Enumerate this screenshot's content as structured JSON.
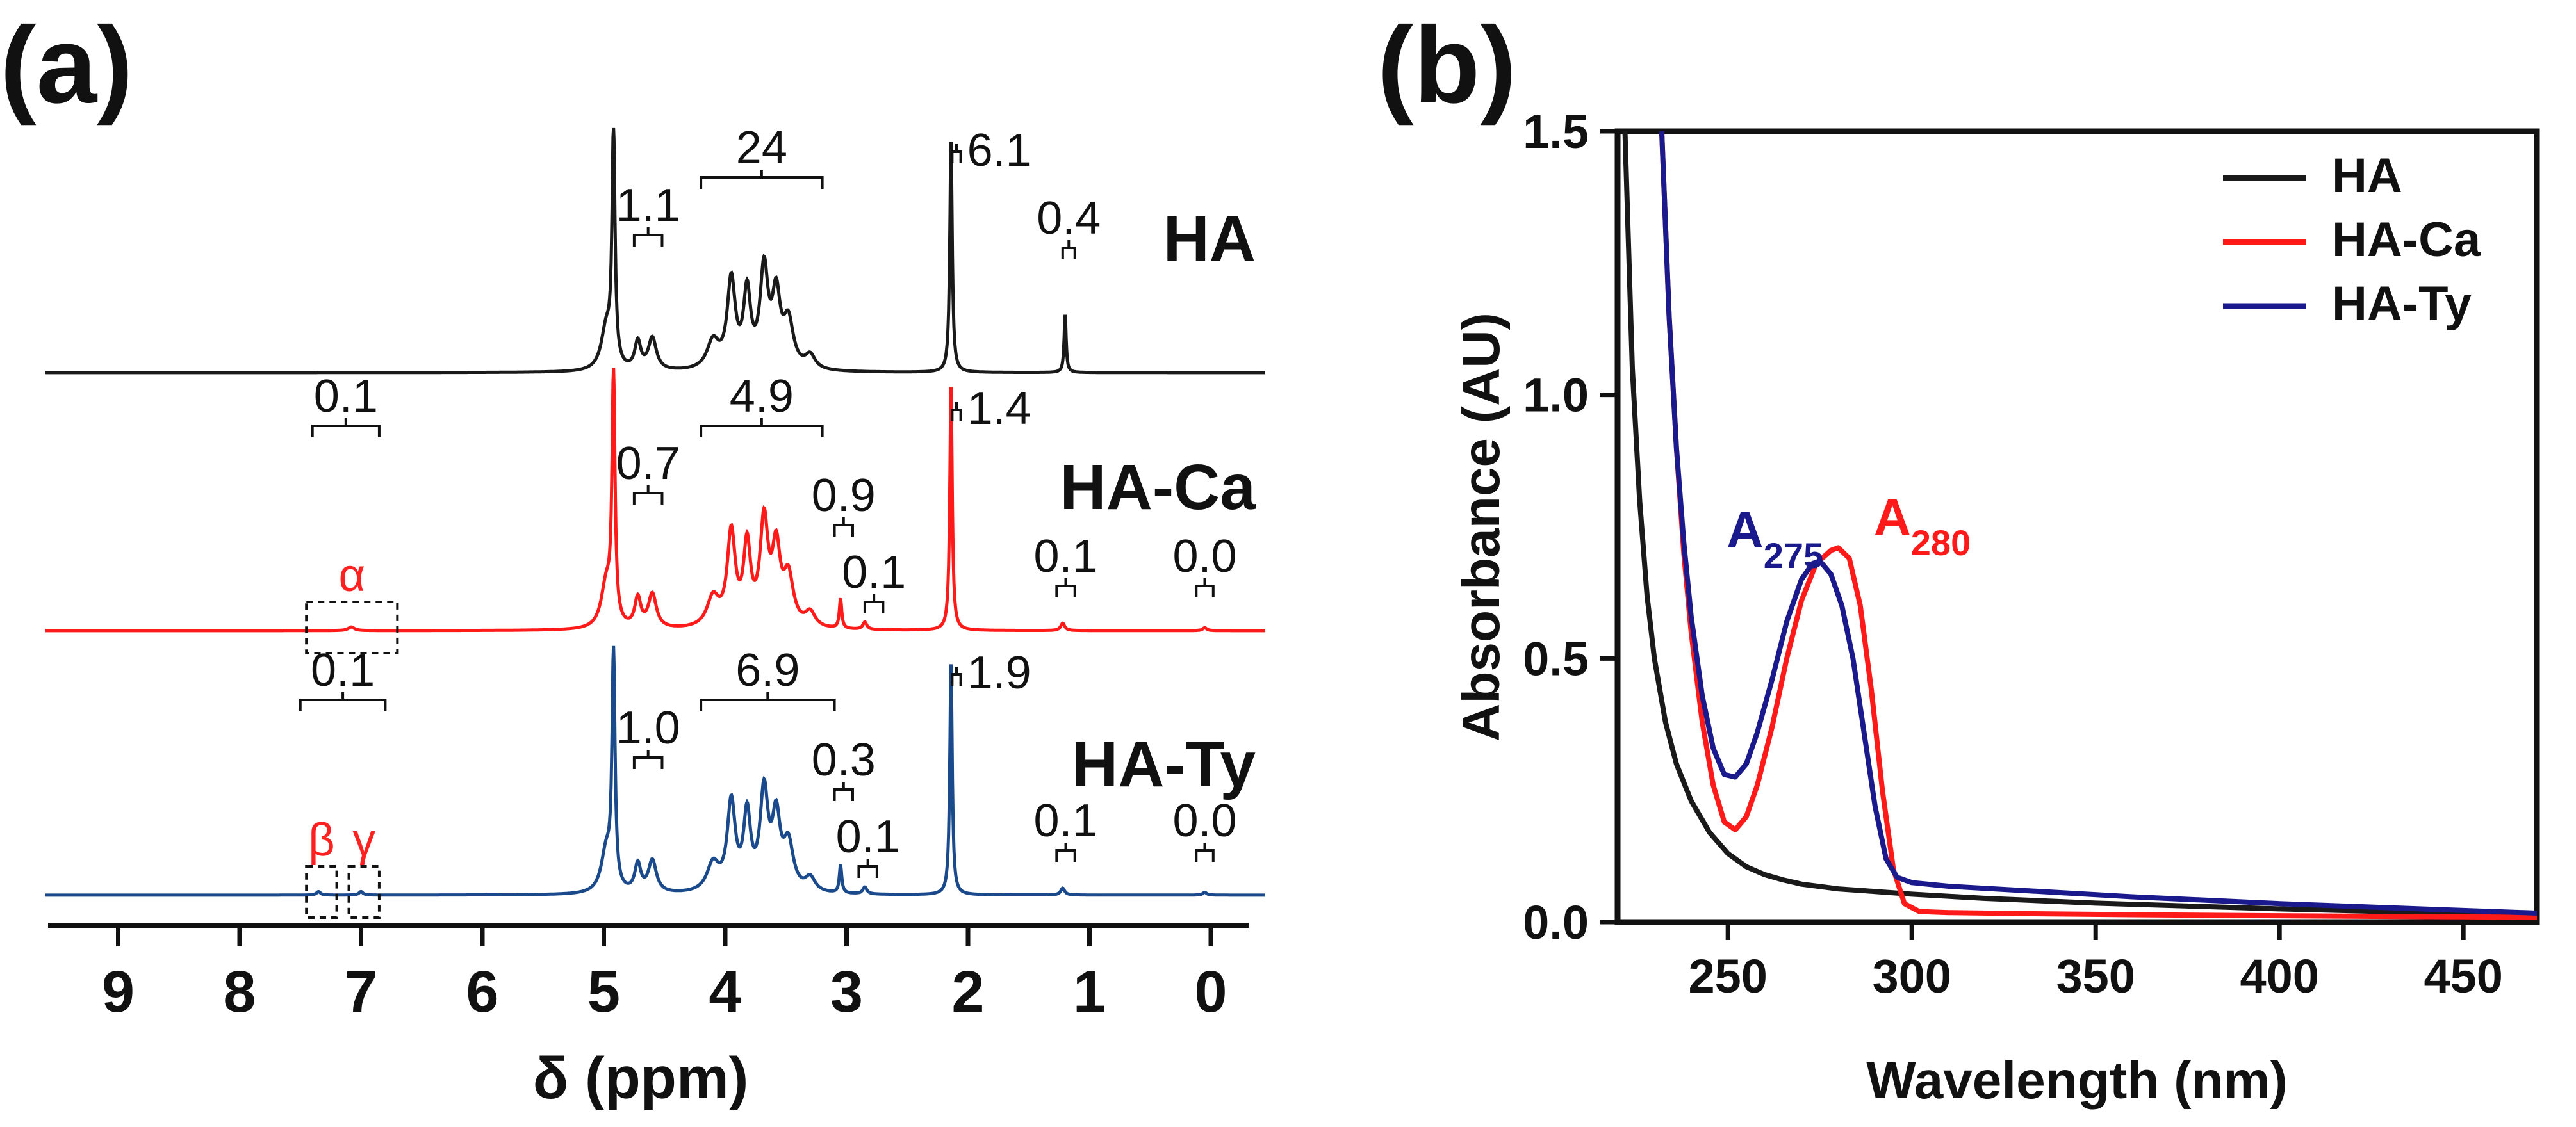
{
  "panel_labels": {
    "a": "(a)",
    "b": "(b)"
  },
  "chart_data": [
    {
      "type": "line",
      "title": "",
      "xlabel": "δ (ppm)",
      "ylabel": "",
      "xlim": [
        9.5,
        -0.5
      ],
      "x_ticks": [
        "9",
        "8",
        "7",
        "6",
        "5",
        "4",
        "3",
        "2",
        "1",
        "0"
      ],
      "series": [
        {
          "name": "HA",
          "color": "#1a1a1a",
          "label": "HA",
          "integrals": [
            {
              "label": "24",
              "range": [
                4.2,
                3.2
              ]
            },
            {
              "label": "1.1",
              "range": [
                4.75,
                4.52
              ]
            },
            {
              "label": "6.1",
              "range": [
                2.13,
                2.06
              ]
            },
            {
              "label": "0.4",
              "range": [
                1.22,
                1.12
              ]
            }
          ]
        },
        {
          "name": "HA-Ca",
          "color": "#ff1a1a",
          "label": "HA-Ca",
          "integrals": [
            {
              "label": "4.9",
              "range": [
                4.2,
                3.2
              ]
            },
            {
              "label": "0.7",
              "range": [
                4.75,
                4.52
              ]
            },
            {
              "label": "1.4",
              "range": [
                2.13,
                2.06
              ]
            },
            {
              "label": "0.9",
              "range": [
                3.1,
                2.95
              ]
            },
            {
              "label": "0.1",
              "range": [
                2.85,
                2.7
              ]
            },
            {
              "label": "0.1",
              "range": [
                1.27,
                1.12
              ]
            },
            {
              "label": "0.0",
              "range": [
                0.12,
                -0.02
              ]
            },
            {
              "label": "0.1",
              "range": [
                7.4,
                6.85
              ]
            }
          ],
          "boxes": [
            {
              "label": "α",
              "range": [
                7.45,
                6.7
              ]
            }
          ]
        },
        {
          "name": "HA-Ty",
          "color": "#1a4a8c",
          "label": "HA-Ty",
          "integrals": [
            {
              "label": "6.9",
              "range": [
                4.2,
                3.1
              ]
            },
            {
              "label": "1.0",
              "range": [
                4.75,
                4.52
              ]
            },
            {
              "label": "1.9",
              "range": [
                2.13,
                2.06
              ]
            },
            {
              "label": "0.3",
              "range": [
                3.1,
                2.95
              ]
            },
            {
              "label": "0.1",
              "range": [
                2.9,
                2.75
              ]
            },
            {
              "label": "0.1",
              "range": [
                1.27,
                1.12
              ]
            },
            {
              "label": "0.0",
              "range": [
                0.12,
                -0.02
              ]
            },
            {
              "label": "0.1",
              "range": [
                7.5,
                6.8
              ]
            }
          ],
          "boxes": [
            {
              "label": "β",
              "range": [
                7.45,
                7.2
              ]
            },
            {
              "label": "γ",
              "range": [
                7.1,
                6.85
              ]
            }
          ]
        }
      ]
    },
    {
      "type": "line",
      "title": "",
      "xlabel": "Wavelength (nm)",
      "ylabel": "Absorbance (AU)",
      "xlim": [
        220,
        470
      ],
      "ylim": [
        0,
        1.5
      ],
      "x_ticks": [
        250,
        300,
        350,
        400,
        450
      ],
      "y_ticks": [
        "0.0",
        "0.5",
        "1.0",
        "1.5"
      ],
      "legend": "top-right",
      "series": [
        {
          "name": "HA",
          "color": "#1a1a1a",
          "x": [
            222,
            224,
            226,
            228,
            230,
            233,
            236,
            240,
            245,
            250,
            255,
            260,
            265,
            270,
            280,
            290,
            300,
            320,
            350,
            400,
            450,
            470
          ],
          "y": [
            1.5,
            1.05,
            0.8,
            0.62,
            0.5,
            0.38,
            0.3,
            0.23,
            0.17,
            0.13,
            0.105,
            0.09,
            0.08,
            0.072,
            0.063,
            0.058,
            0.053,
            0.045,
            0.036,
            0.025,
            0.016,
            0.013
          ]
        },
        {
          "name": "HA-Ca",
          "color": "#ff1a1a",
          "annotation": "A280",
          "x": [
            232,
            234,
            236,
            238,
            240,
            243,
            246,
            249,
            252,
            255,
            258,
            262,
            266,
            270,
            274,
            278,
            280,
            283,
            286,
            289,
            292,
            295,
            298,
            302,
            310,
            330,
            360,
            400,
            450,
            470
          ],
          "y": [
            1.5,
            1.15,
            0.9,
            0.7,
            0.55,
            0.38,
            0.26,
            0.19,
            0.175,
            0.2,
            0.26,
            0.37,
            0.5,
            0.61,
            0.68,
            0.705,
            0.71,
            0.69,
            0.6,
            0.44,
            0.25,
            0.1,
            0.035,
            0.02,
            0.018,
            0.016,
            0.014,
            0.012,
            0.01,
            0.009
          ]
        },
        {
          "name": "HA-Ty",
          "color": "#1a1a8c",
          "annotation": "A275",
          "x": [
            232,
            234,
            236,
            238,
            240,
            243,
            246,
            249,
            252,
            255,
            258,
            262,
            266,
            270,
            273,
            275,
            278,
            281,
            284,
            287,
            290,
            293,
            296,
            300,
            310,
            330,
            360,
            400,
            450,
            470
          ],
          "y": [
            1.5,
            1.15,
            0.9,
            0.72,
            0.58,
            0.43,
            0.33,
            0.28,
            0.275,
            0.3,
            0.36,
            0.46,
            0.57,
            0.65,
            0.68,
            0.685,
            0.66,
            0.6,
            0.5,
            0.36,
            0.22,
            0.12,
            0.085,
            0.075,
            0.068,
            0.06,
            0.048,
            0.035,
            0.022,
            0.017
          ]
        }
      ]
    }
  ]
}
